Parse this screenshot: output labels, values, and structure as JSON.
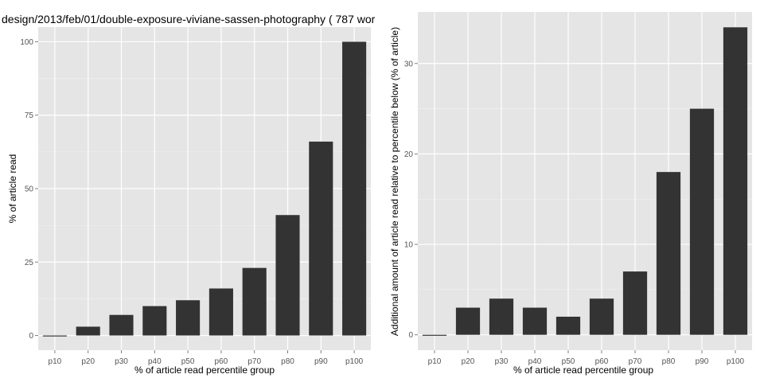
{
  "chart_data": [
    {
      "type": "bar",
      "title": "design/2013/feb/01/double-exposure-viviane-sassen-photography ( 787 wor",
      "xlabel": "% of article read percentile group",
      "ylabel": "% of article read",
      "categories": [
        "p10",
        "p20",
        "p30",
        "p40",
        "p50",
        "p60",
        "p70",
        "p80",
        "p90",
        "p100"
      ],
      "values": [
        0,
        3,
        7,
        10,
        12,
        16,
        23,
        41,
        66,
        100
      ],
      "ylim": [
        -5,
        105
      ],
      "yticks": [
        0,
        25,
        50,
        75,
        100
      ],
      "grid": true
    },
    {
      "type": "bar",
      "title": "",
      "xlabel": "% of article read percentile group",
      "ylabel": "Additional amount of article read relative to percentile below (% of article)",
      "categories": [
        "p10",
        "p20",
        "p30",
        "p40",
        "p50",
        "p60",
        "p70",
        "p80",
        "p90",
        "p100"
      ],
      "values": [
        0,
        3,
        4,
        3,
        2,
        4,
        7,
        18,
        25,
        34
      ],
      "ylim": [
        -1.7,
        35.7
      ],
      "yticks": [
        0,
        10,
        20,
        30
      ],
      "grid": true
    }
  ],
  "colors": {
    "panel_background": "#e5e5e5",
    "grid_major": "#ffffff",
    "grid_minor": "#f2f2f2",
    "bar_fill": "#333333",
    "tick_text": "#555555"
  }
}
